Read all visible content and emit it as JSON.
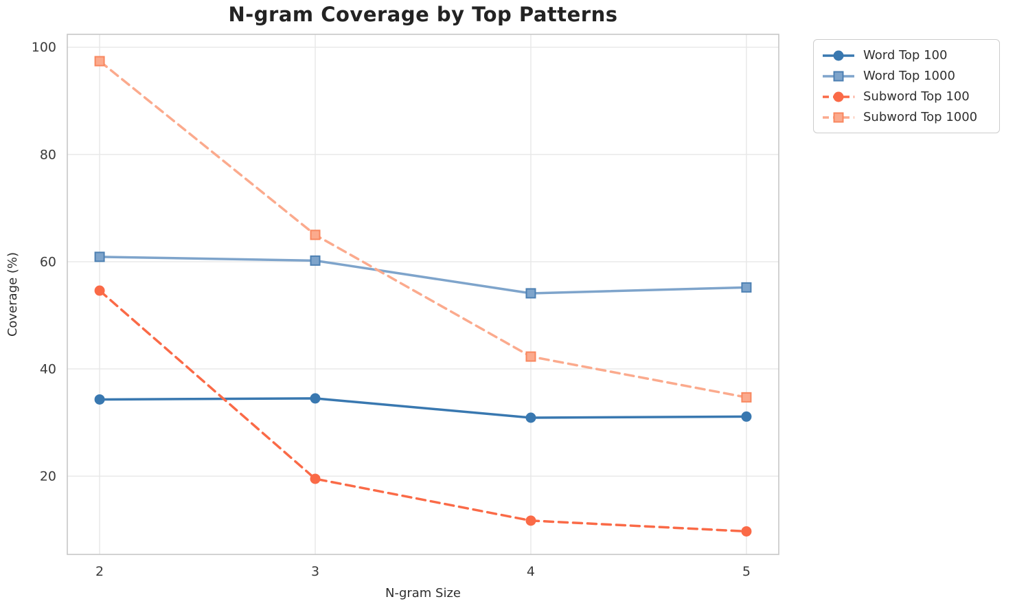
{
  "chart_data": {
    "type": "line",
    "title": "N-gram Coverage by Top Patterns",
    "xlabel": "N-gram Size",
    "ylabel": "Coverage (%)",
    "x": [
      2,
      3,
      4,
      5
    ],
    "xticks": [
      "2",
      "3",
      "4",
      "5"
    ],
    "yticks": [
      20,
      40,
      60,
      80,
      100
    ],
    "ytick_labels": [
      "20",
      "40",
      "60",
      "80",
      "100"
    ],
    "xlim": [
      1.85,
      5.15
    ],
    "ylim": [
      5.4,
      102.4
    ],
    "grid": true,
    "legend_position": "outside upper right",
    "series": [
      {
        "name": "Word Top 100",
        "values": [
          34.3,
          34.5,
          30.9,
          31.1
        ],
        "color": "#3978b0",
        "marker": "circle",
        "dash": "solid",
        "marker_edge": "#3978b0"
      },
      {
        "name": "Word Top 1000",
        "values": [
          60.9,
          60.2,
          54.1,
          55.2
        ],
        "color": "#7ea4cb",
        "marker": "square",
        "dash": "solid",
        "marker_edge": "#4d80b3"
      },
      {
        "name": "Subword Top 100",
        "values": [
          54.6,
          19.5,
          11.7,
          9.7
        ],
        "color": "#fa6a47",
        "marker": "circle",
        "dash": "dashed",
        "marker_edge": "#fa6a47"
      },
      {
        "name": "Subword Top 1000",
        "values": [
          97.4,
          65.0,
          42.3,
          34.7
        ],
        "color": "#fbaa8d",
        "marker": "square",
        "dash": "dashed",
        "marker_edge": "#f8875f"
      }
    ],
    "style": {
      "grid_color": "#e7e7e7",
      "spine_color": "#c6c6c6",
      "tick_label_color": "#3b3b3b",
      "axis_label_color": "#2e2e2e",
      "title_color": "#232323",
      "background": "#ffffff"
    }
  }
}
